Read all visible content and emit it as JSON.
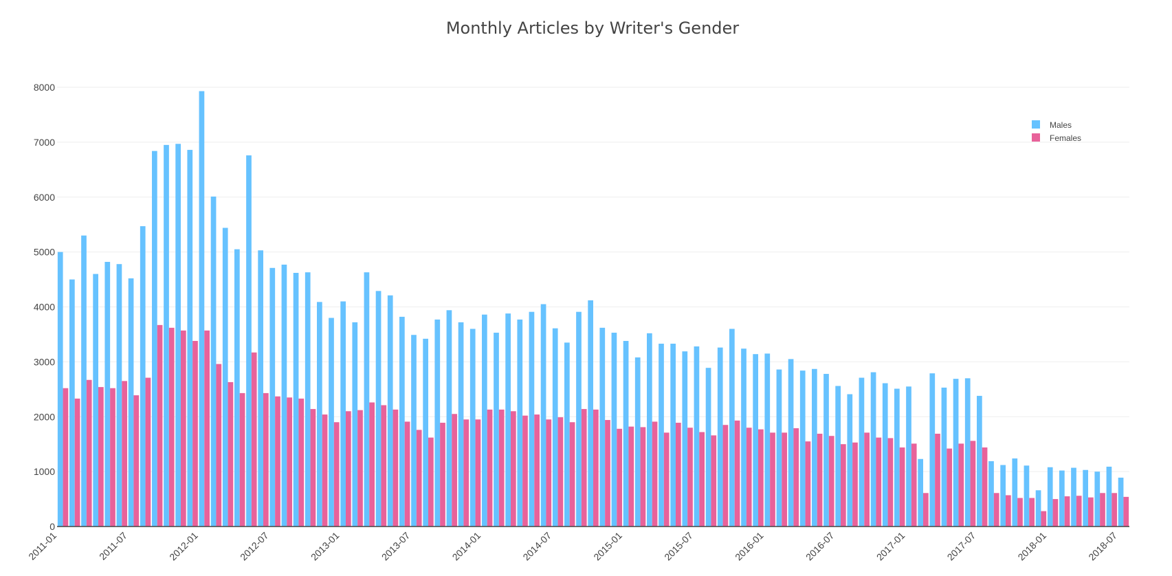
{
  "chart_data": {
    "type": "bar",
    "title": "Monthly Articles by Writer's Gender",
    "xlabel": "",
    "ylabel": "",
    "ylim": [
      0,
      8000
    ],
    "yticks": [
      "0",
      "1000",
      "2000",
      "3000",
      "4000",
      "5000",
      "6000",
      "7000",
      "8000"
    ],
    "start_month": "2011-01",
    "xtick_labels": [
      "2011-01",
      "2011-07",
      "2012-01",
      "2012-07",
      "2013-01",
      "2013-07",
      "2014-01",
      "2014-07",
      "2015-01",
      "2015-07",
      "2016-01",
      "2016-07",
      "2017-01",
      "2017-07",
      "2018-01",
      "2018-07"
    ],
    "grid": true,
    "legend_position": "top-right",
    "series": [
      {
        "name": "Males",
        "color": "#66c2ff",
        "values": [
          5000,
          4500,
          5300,
          4600,
          4820,
          4780,
          4520,
          5470,
          6840,
          6950,
          6970,
          6860,
          7930,
          6010,
          5440,
          5050,
          6760,
          5030,
          4710,
          4770,
          4620,
          4630,
          4090,
          3800,
          4100,
          3720,
          4630,
          4290,
          4210,
          3820,
          3490,
          3420,
          3770,
          3940,
          3720,
          3600,
          3860,
          3530,
          3880,
          3770,
          3910,
          4050,
          3610,
          3350,
          3910,
          4120,
          3620,
          3530,
          3380,
          3080,
          3520,
          3330,
          3330,
          3190,
          3280,
          2890,
          3260,
          3600,
          3240,
          3140,
          3150,
          2860,
          3050,
          2840,
          2870,
          2780,
          2560,
          2410,
          2710,
          2810,
          2610,
          2510,
          2550,
          1230,
          2790,
          2530,
          2690,
          2700,
          2380,
          1190,
          1120,
          1240,
          1110,
          660,
          1080,
          1020,
          1070,
          1030,
          1000,
          1090,
          890
        ]
      },
      {
        "name": "Females",
        "color": "#e8629a",
        "values": [
          2520,
          2330,
          2670,
          2540,
          2520,
          2650,
          2390,
          2710,
          3670,
          3620,
          3570,
          3380,
          3570,
          2960,
          2630,
          2430,
          3170,
          2430,
          2370,
          2350,
          2330,
          2140,
          2040,
          1900,
          2100,
          2120,
          2260,
          2210,
          2130,
          1910,
          1760,
          1620,
          1890,
          2050,
          1950,
          1950,
          2130,
          2130,
          2100,
          2020,
          2040,
          1950,
          1990,
          1900,
          2140,
          2130,
          1940,
          1780,
          1820,
          1810,
          1910,
          1710,
          1890,
          1800,
          1720,
          1660,
          1850,
          1930,
          1800,
          1770,
          1710,
          1710,
          1790,
          1550,
          1690,
          1650,
          1500,
          1530,
          1710,
          1620,
          1610,
          1440,
          1510,
          610,
          1690,
          1420,
          1510,
          1560,
          1440,
          610,
          570,
          520,
          520,
          280,
          500,
          550,
          560,
          530,
          610,
          610,
          540
        ]
      }
    ]
  }
}
